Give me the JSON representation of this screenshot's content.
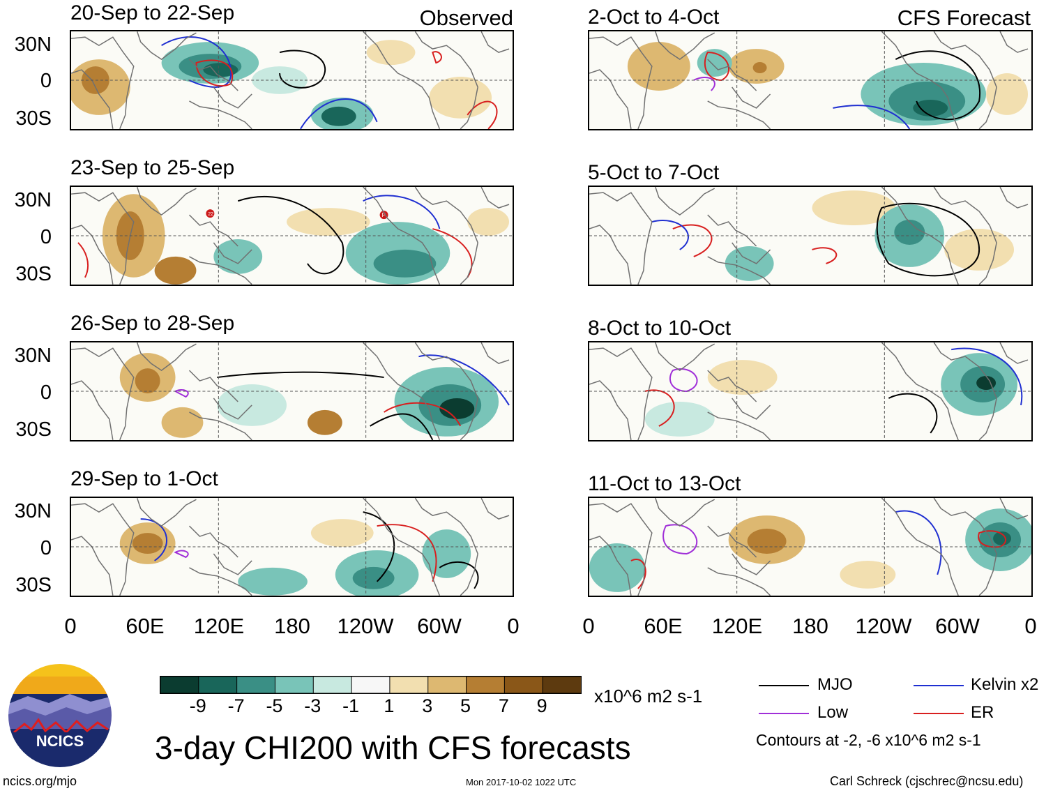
{
  "header": {
    "observed_label": "Observed",
    "forecast_label": "CFS Forecast"
  },
  "panels_observed": [
    {
      "title": "20-Sep to 22-Sep"
    },
    {
      "title": "23-Sep to 25-Sep"
    },
    {
      "title": "26-Sep to 28-Sep"
    },
    {
      "title": "29-Sep to 1-Oct"
    }
  ],
  "panels_forecast": [
    {
      "title": "2-Oct to 4-Oct"
    },
    {
      "title": "5-Oct to 7-Oct"
    },
    {
      "title": "8-Oct to 10-Oct"
    },
    {
      "title": "11-Oct to 13-Oct"
    }
  ],
  "axes": {
    "lat_labels": [
      "30N",
      "0",
      "30S"
    ],
    "lon_labels": [
      "0",
      "60E",
      "120E",
      "180",
      "120W",
      "60W",
      "0"
    ]
  },
  "colorbar": {
    "tick_labels": [
      "-9",
      "-7",
      "-5",
      "-3",
      "-1",
      "1",
      "3",
      "5",
      "7",
      "9"
    ],
    "colors": [
      "#0b3c30",
      "#19665a",
      "#3a8f85",
      "#79c4b8",
      "#c8e9e0",
      "#f7f7f7",
      "#f2dfb0",
      "#ddb871",
      "#b57e33",
      "#8a5718",
      "#5d3a0f"
    ],
    "units": "x10^6 m2 s-1"
  },
  "legend": {
    "items": [
      {
        "label": "MJO",
        "color": "#000000"
      },
      {
        "label": "Kelvin x2",
        "color": "#1f2fd1"
      },
      {
        "label": "Low",
        "color": "#a02fd8"
      },
      {
        "label": "ER",
        "color": "#d81f1f"
      }
    ],
    "contours_note": "Contours at -2, -6 x10^6 m2 s-1"
  },
  "title": "3-day CHI200 with CFS forecasts",
  "logo": {
    "text": "NCICS"
  },
  "footer": {
    "url": "ncics.org/mjo",
    "timestamp": "Mon 2017-10-02 1022 UTC",
    "author": "Carl Schreck (cjschrec@ncsu.edu)"
  },
  "storms": [
    "22",
    "P"
  ]
}
